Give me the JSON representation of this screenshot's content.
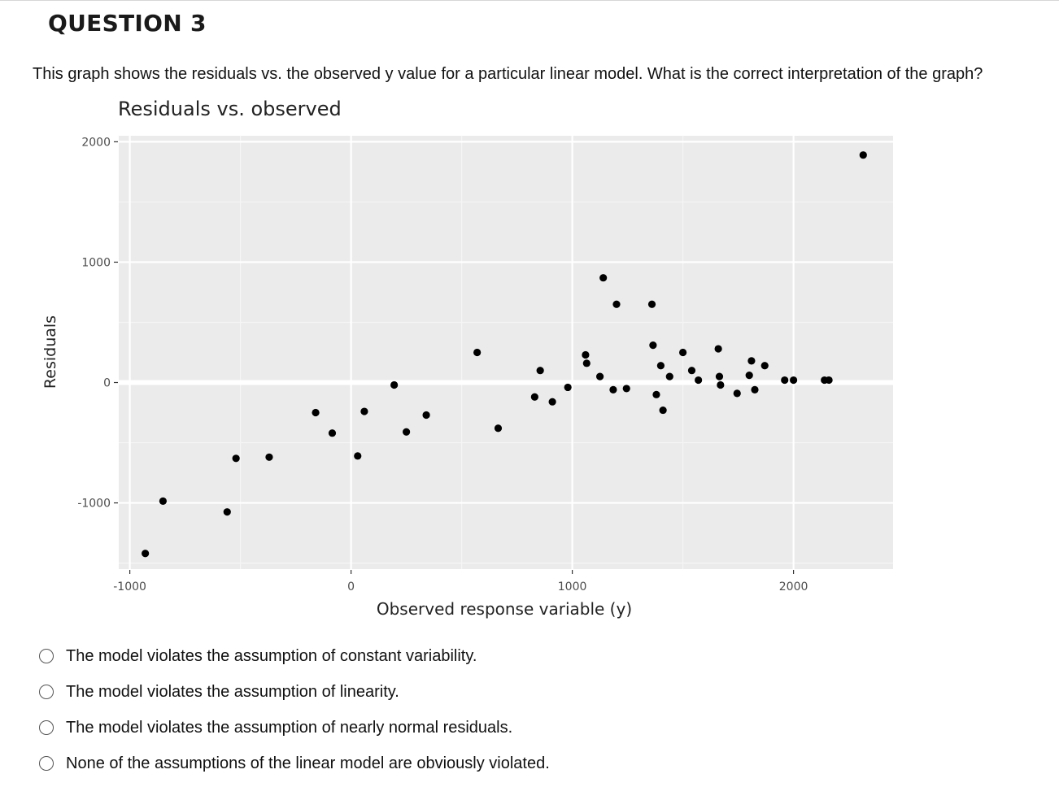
{
  "question": {
    "title": "QUESTION 3",
    "text": "This graph shows the residuals vs. the observed y value for a particular linear model. What is the correct interpretation of the graph?"
  },
  "chart_data": {
    "type": "scatter",
    "title": "Residuals vs. observed",
    "xlabel": "Observed response variable (y)",
    "ylabel": "Residuals",
    "xlim": [
      -1050,
      2450
    ],
    "ylim": [
      -1550,
      2050
    ],
    "xticks": [
      -1000,
      0,
      1000,
      2000
    ],
    "xtick_labels": [
      "-1000",
      "0",
      "1000",
      "2000"
    ],
    "yticks": [
      -1000,
      0,
      1000,
      2000
    ],
    "ytick_labels": [
      "-1000",
      "0",
      "1000",
      "2000"
    ],
    "grid": true,
    "reference_line_y": 0,
    "x": [
      -930,
      -850,
      -560,
      -520,
      -370,
      -160,
      -85,
      30,
      60,
      195,
      250,
      340,
      570,
      665,
      830,
      855,
      910,
      980,
      1060,
      1065,
      1125,
      1140,
      1185,
      1200,
      1245,
      1360,
      1365,
      1380,
      1400,
      1440,
      1500,
      1540,
      1570,
      1660,
      1665,
      1670,
      1745,
      1800,
      1810,
      1825,
      1870,
      2315,
      1410,
      1960,
      2000,
      2140,
      2160
    ],
    "y": [
      -1420,
      -985,
      -1075,
      -630,
      -620,
      -250,
      -420,
      -610,
      -240,
      -20,
      -410,
      -270,
      250,
      -380,
      -120,
      100,
      -160,
      -40,
      230,
      160,
      50,
      870,
      -60,
      650,
      -50,
      650,
      310,
      -100,
      140,
      50,
      250,
      100,
      20,
      280,
      50,
      -20,
      -90,
      60,
      180,
      -60,
      140,
      1890,
      -230,
      20,
      20,
      20,
      20
    ],
    "point_labels": []
  },
  "options": [
    {
      "label": "The model violates the assumption of constant variability."
    },
    {
      "label": "The model violates the assumption of linearity."
    },
    {
      "label": "The model violates the assumption of nearly normal residuals."
    },
    {
      "label": "None of the assumptions of the linear model are obviously violated."
    }
  ]
}
